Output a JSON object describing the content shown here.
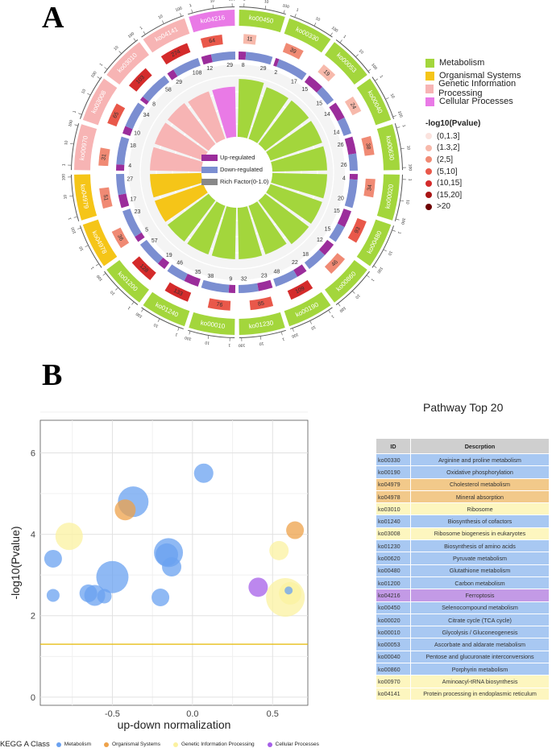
{
  "panel_a_label": "A",
  "panel_b_label": "B",
  "class_colors": {
    "Metabolism": "#a3d63c",
    "Organismal Systems": "#f5c518",
    "Genetic Information Processing": "#f7b4b4",
    "Cellular Processes": "#e97ae6"
  },
  "legend_a": {
    "classes": [
      "Metabolism",
      "Organismal Systems",
      "Genetic Information Processing",
      "Cellular Processes"
    ],
    "pvalue_title": "-log10(Pvalue)",
    "pvalue_bins": [
      {
        "label": "(0,1.3]",
        "color": "#fbe3de"
      },
      {
        "label": "(1.3,2]",
        "color": "#f7b9ab"
      },
      {
        "label": "(2,5]",
        "color": "#f08a74"
      },
      {
        "label": "(5,10]",
        "color": "#e9584a"
      },
      {
        "label": "(10,15]",
        "color": "#d42b2b"
      },
      {
        "label": "(15,20]",
        "color": "#a91515"
      },
      {
        "label": ">20",
        "color": "#6e0000"
      }
    ]
  },
  "circos_legend": {
    "up": "Up-regulated",
    "down": "Down-regulated",
    "rich": "Rich Factor(0-1.0)",
    "up_color": "#9b2d9b",
    "down_color": "#7b8ed1",
    "rich_color": "#888888"
  },
  "circos_data": {
    "ring_ticks": [
      "1",
      "10",
      "100"
    ],
    "pathways": [
      {
        "id": "ko00450",
        "cls": "Metabolism",
        "bg": 11,
        "up": 8,
        "down": 29,
        "rich": 0.9
      },
      {
        "id": "ko00330",
        "cls": "Metabolism",
        "bg": 39,
        "up": 2,
        "down": 17,
        "rich": 0.85
      },
      {
        "id": "ko00053",
        "cls": "Metabolism",
        "bg": 19,
        "up": 15,
        "down": 15,
        "rich": 0.85
      },
      {
        "id": "ko00040",
        "cls": "Metabolism",
        "bg": 24,
        "up": 14,
        "down": 14,
        "rich": 0.85
      },
      {
        "id": "ko00630",
        "cls": "Metabolism",
        "bg": 38,
        "up": 26,
        "down": 26,
        "rich": 0.85
      },
      {
        "id": "ko00020",
        "cls": "Metabolism",
        "bg": 34,
        "up": 4,
        "down": 20,
        "rich": 0.85
      },
      {
        "id": "ko00480",
        "cls": "Metabolism",
        "bg": 93,
        "up": 15,
        "down": 15,
        "rich": 0.85
      },
      {
        "id": "ko00860",
        "cls": "Metabolism",
        "bg": 46,
        "up": 12,
        "down": 18,
        "rich": 0.85
      },
      {
        "id": "ko00190",
        "cls": "Metabolism",
        "bg": 109,
        "up": 22,
        "down": 48,
        "rich": 0.8
      },
      {
        "id": "ko01230",
        "cls": "Metabolism",
        "bg": 85,
        "up": 23,
        "down": 32,
        "rich": 0.8
      },
      {
        "id": "ko00010",
        "cls": "Metabolism",
        "bg": 76,
        "up": 9,
        "down": 38,
        "rich": 0.8
      },
      {
        "id": "ko01240",
        "cls": "Metabolism",
        "bg": 133,
        "up": 35,
        "down": 46,
        "rich": 0.8
      },
      {
        "id": "ko01200",
        "cls": "Metabolism",
        "bg": 128,
        "up": 19,
        "down": 57,
        "rich": 0.8
      },
      {
        "id": "ko04978",
        "cls": "Organismal Systems",
        "bg": 36,
        "up": 5,
        "down": 23,
        "rich": 0.8
      },
      {
        "id": "ko04979",
        "cls": "Organismal Systems",
        "bg": 51,
        "up": 17,
        "down": 27,
        "rich": 0.8
      },
      {
        "id": "ko00970",
        "cls": "Genetic Information Processing",
        "bg": 31,
        "up": 4,
        "down": 18,
        "rich": 0.8
      },
      {
        "id": "ko03008",
        "cls": "Genetic Information Processing",
        "bg": 65,
        "up": 10,
        "down": 34,
        "rich": 0.8
      },
      {
        "id": "ko03010",
        "cls": "Genetic Information Processing",
        "bg": 103,
        "up": 8,
        "down": 58,
        "rich": 0.8
      },
      {
        "id": "ko04141",
        "cls": "Genetic Information Processing",
        "bg": 274,
        "up": 29,
        "down": 108,
        "rich": 0.78
      },
      {
        "id": "ko04216",
        "cls": "Cellular Processes",
        "bg": 64,
        "up": 12,
        "down": 29,
        "rich": 0.78
      }
    ]
  },
  "chart_data": {
    "type": "scatter",
    "xlabel": "up-down normalization",
    "ylabel": "-log10(Pvalue)",
    "xlim": [
      -0.95,
      0.72
    ],
    "ylim": [
      -0.2,
      6.8
    ],
    "xticks": [
      -0.5,
      0.0,
      0.5
    ],
    "yticks": [
      0,
      2,
      4,
      6
    ],
    "threshold_y": 1.3,
    "grid": true,
    "legend_title": "KEGG A Class",
    "points": [
      {
        "x": 0.07,
        "y": 5.5,
        "size": 12,
        "cls": "Metabolism"
      },
      {
        "x": -0.37,
        "y": 4.8,
        "size": 19,
        "cls": "Metabolism"
      },
      {
        "x": -0.42,
        "y": 4.6,
        "size": 13,
        "cls": "Organismal Systems"
      },
      {
        "x": -0.77,
        "y": 3.95,
        "size": 17,
        "cls": "Genetic Information Processing"
      },
      {
        "x": 0.64,
        "y": 4.1,
        "size": 11,
        "cls": "Organismal Systems"
      },
      {
        "x": -0.87,
        "y": 3.4,
        "size": 11,
        "cls": "Metabolism"
      },
      {
        "x": 0.54,
        "y": 3.6,
        "size": 12,
        "cls": "Genetic Information Processing"
      },
      {
        "x": -0.15,
        "y": 3.55,
        "size": 18,
        "cls": "Metabolism"
      },
      {
        "x": -0.16,
        "y": 3.5,
        "size": 14,
        "cls": "Metabolism"
      },
      {
        "x": -0.13,
        "y": 3.2,
        "size": 12,
        "cls": "Metabolism"
      },
      {
        "x": -0.5,
        "y": 2.95,
        "size": 20,
        "cls": "Metabolism"
      },
      {
        "x": 0.41,
        "y": 2.7,
        "size": 12,
        "cls": "Cellular Processes"
      },
      {
        "x": -0.65,
        "y": 2.55,
        "size": 11,
        "cls": "Metabolism"
      },
      {
        "x": -0.61,
        "y": 2.5,
        "size": 13,
        "cls": "Metabolism"
      },
      {
        "x": -0.55,
        "y": 2.48,
        "size": 9,
        "cls": "Metabolism"
      },
      {
        "x": -0.2,
        "y": 2.45,
        "size": 11,
        "cls": "Metabolism"
      },
      {
        "x": -0.87,
        "y": 2.5,
        "size": 8,
        "cls": "Metabolism"
      },
      {
        "x": 0.58,
        "y": 2.45,
        "size": 24,
        "cls": "Genetic Information Processing"
      },
      {
        "x": 0.61,
        "y": 2.55,
        "size": 14,
        "cls": "Genetic Information Processing"
      },
      {
        "x": 0.6,
        "y": 2.62,
        "size": 5,
        "cls": "Metabolism"
      }
    ]
  },
  "bubble_colors": {
    "Metabolism": "#6aa1f0",
    "Organismal Systems": "#eea24a",
    "Genetic Information Processing": "#fbf1a0",
    "Cellular Processes": "#a65fe8"
  },
  "table": {
    "title": "Pathway Top 20",
    "headers": [
      "ID",
      "Descrption"
    ],
    "rows": [
      {
        "id": "ko00330",
        "desc": "Arginine and proline metabolism",
        "cls": "Metabolism"
      },
      {
        "id": "ko00190",
        "desc": "Oxidative phosphorylation",
        "cls": "Metabolism"
      },
      {
        "id": "ko04979",
        "desc": "Cholesterol metabolism",
        "cls": "Organismal Systems"
      },
      {
        "id": "ko04978",
        "desc": "Mineral absorption",
        "cls": "Organismal Systems"
      },
      {
        "id": "ko03010",
        "desc": "Ribosome",
        "cls": "Genetic Information Processing"
      },
      {
        "id": "ko01240",
        "desc": "Biosynthesis of cofactors",
        "cls": "Metabolism"
      },
      {
        "id": "ko03008",
        "desc": "Ribosome biogenesis in eukaryotes",
        "cls": "Genetic Information Processing"
      },
      {
        "id": "ko01230",
        "desc": "Biosynthesis of amino acids",
        "cls": "Metabolism"
      },
      {
        "id": "ko00620",
        "desc": "Pyruvate metabolism",
        "cls": "Metabolism"
      },
      {
        "id": "ko00480",
        "desc": "Glutathione metabolism",
        "cls": "Metabolism"
      },
      {
        "id": "ko01200",
        "desc": "Carbon metabolism",
        "cls": "Metabolism"
      },
      {
        "id": "ko04216",
        "desc": "Ferroptosis",
        "cls": "Cellular Processes"
      },
      {
        "id": "ko00450",
        "desc": "Selenocompound metabolism",
        "cls": "Metabolism"
      },
      {
        "id": "ko00020",
        "desc": "Citrate cycle (TCA cycle)",
        "cls": "Metabolism"
      },
      {
        "id": "ko00010",
        "desc": "Glycolysis / Gluconeogenesis",
        "cls": "Metabolism"
      },
      {
        "id": "ko00053",
        "desc": "Ascorbate and aldarate metabolism",
        "cls": "Metabolism"
      },
      {
        "id": "ko00040",
        "desc": "Pentose and glucuronate interconversions",
        "cls": "Metabolism"
      },
      {
        "id": "ko00860",
        "desc": "Porphyrin metabolism",
        "cls": "Metabolism"
      },
      {
        "id": "ko00970",
        "desc": "Aminoacyl-tRNA biosynthesis",
        "cls": "Genetic Information Processing"
      },
      {
        "id": "ko04141",
        "desc": "Protein processing in endoplasmic reticulum",
        "cls": "Genetic Information Processing"
      }
    ]
  },
  "table_row_colors": {
    "Metabolism": "#a8c8f2",
    "Organismal Systems": "#f2c98a",
    "Genetic Information Processing": "#fdf6bf",
    "Cellular Processes": "#c39ae6"
  }
}
